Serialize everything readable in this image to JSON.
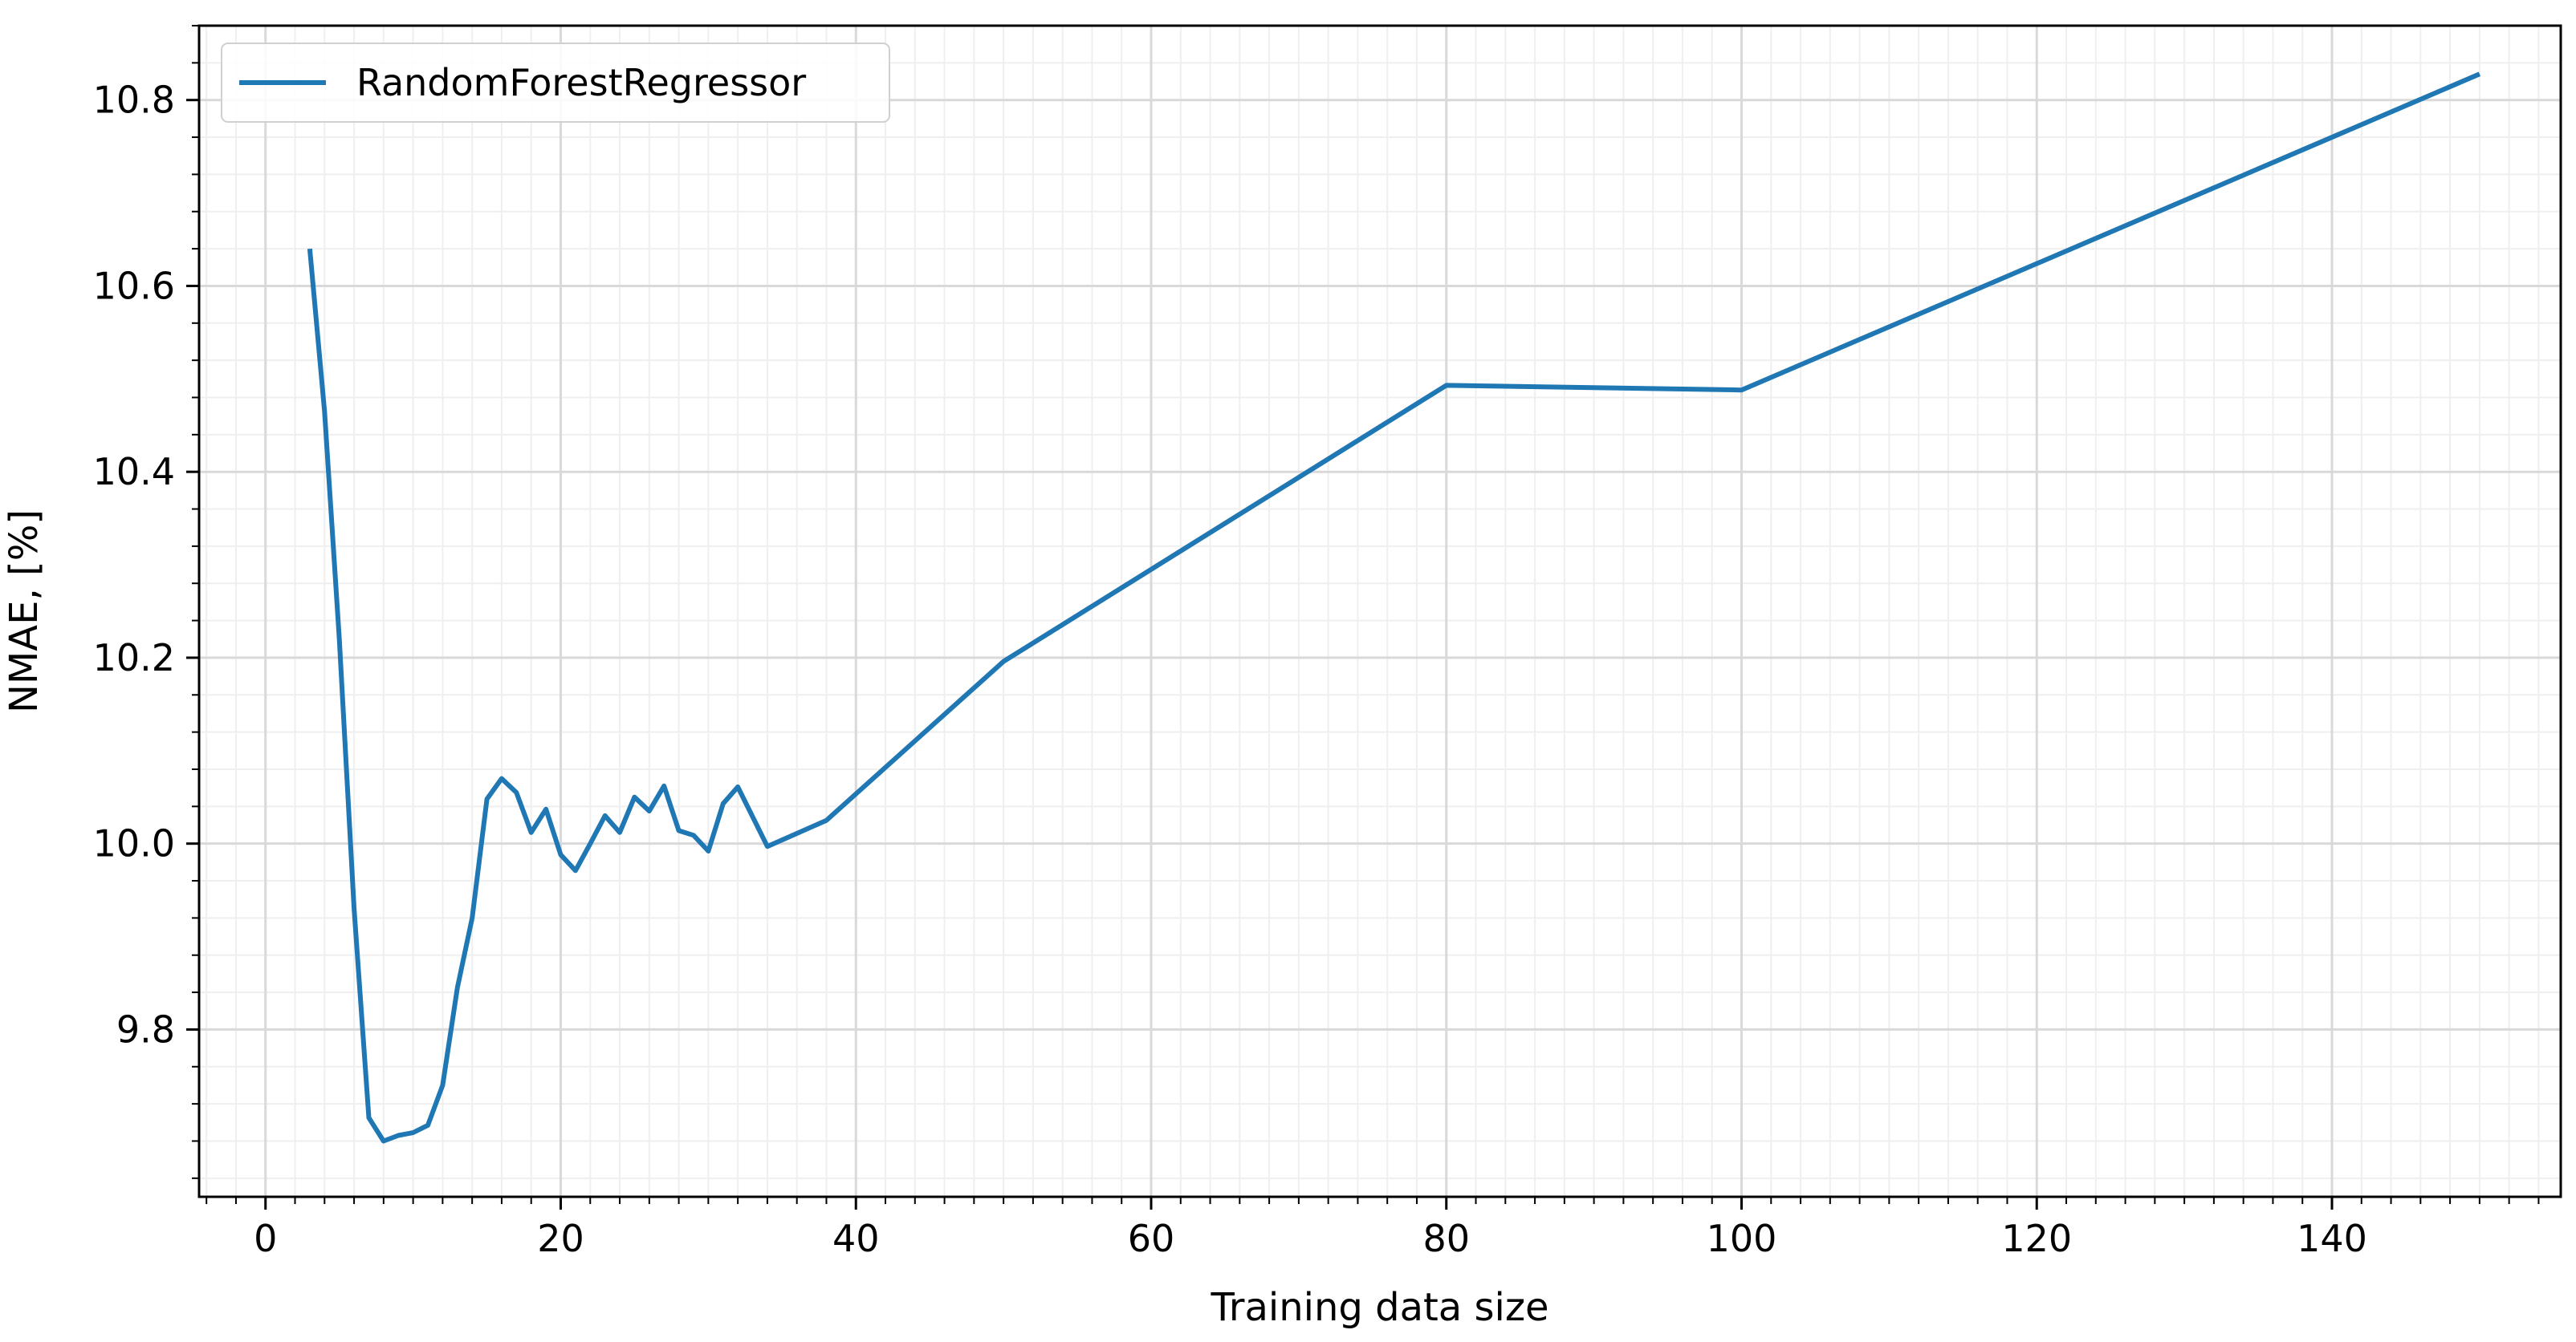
{
  "chart_data": {
    "type": "line",
    "title": "",
    "xlabel": "Training data size",
    "ylabel": "NMAE, [%]",
    "xlim": [
      -4.5,
      155.5
    ],
    "ylim": [
      9.62,
      10.88
    ],
    "xticks": [
      0,
      20,
      40,
      60,
      80,
      100,
      120,
      140
    ],
    "xtick_labels": [
      "0",
      "20",
      "40",
      "60",
      "80",
      "100",
      "120",
      "140"
    ],
    "yticks": [
      9.8,
      10.0,
      10.2,
      10.4,
      10.6,
      10.8
    ],
    "ytick_labels": [
      "9.8",
      "10.0",
      "10.2",
      "10.4",
      "10.6",
      "10.8"
    ],
    "x_minor_step": 2,
    "y_minor_step": 0.04,
    "grid": true,
    "legend_position": "upper-left",
    "colors": {
      "series": "#1f77b4",
      "major_grid": "#d9d9d9",
      "minor_grid": "#efefef",
      "axis": "#000000",
      "legend_border": "#d0d0d0"
    },
    "series": [
      {
        "name": "RandomForestRegressor",
        "x": [
          3,
          4,
          5,
          6,
          7,
          8,
          9,
          10,
          11,
          12,
          13,
          14,
          15,
          16,
          17,
          18,
          19,
          20,
          21,
          22,
          23,
          24,
          25,
          26,
          27,
          28,
          29,
          30,
          31,
          32,
          34,
          38,
          50,
          80,
          100,
          150
        ],
        "y": [
          10.64,
          10.465,
          10.22,
          9.93,
          9.705,
          9.68,
          9.686,
          9.689,
          9.697,
          9.74,
          9.845,
          9.92,
          10.048,
          10.07,
          10.055,
          10.012,
          10.037,
          9.988,
          9.971,
          10.0,
          10.03,
          10.012,
          10.05,
          10.035,
          10.062,
          10.014,
          10.009,
          9.992,
          10.043,
          10.061,
          9.997,
          10.025,
          10.196,
          10.493,
          10.488,
          10.828
        ]
      }
    ]
  }
}
